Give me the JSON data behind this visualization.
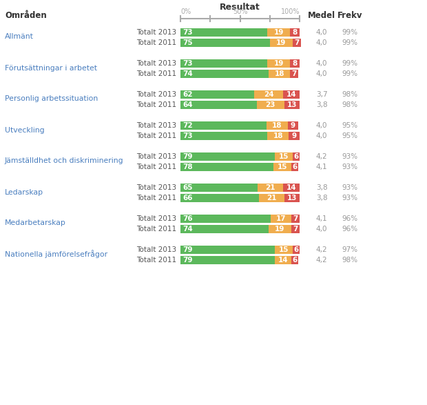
{
  "title": "Resultat",
  "col_header_omraden": "Områden",
  "col_header_medel": "Medel",
  "col_header_frekv": "Frekv",
  "categories": [
    {
      "name": "Allmänt",
      "rows": [
        {
          "label": "Totalt 2013",
          "green": 73,
          "yellow": 19,
          "red": 8,
          "medel": "4,0",
          "frekv": "99%"
        },
        {
          "label": "Totalt 2011",
          "green": 75,
          "yellow": 19,
          "red": 7,
          "medel": "4,0",
          "frekv": "99%"
        }
      ]
    },
    {
      "name": "Förutsättningar i arbetet",
      "rows": [
        {
          "label": "Totalt 2013",
          "green": 73,
          "yellow": 19,
          "red": 8,
          "medel": "4,0",
          "frekv": "99%"
        },
        {
          "label": "Totalt 2011",
          "green": 74,
          "yellow": 18,
          "red": 7,
          "medel": "4,0",
          "frekv": "99%"
        }
      ]
    },
    {
      "name": "Personlig arbetssituation",
      "rows": [
        {
          "label": "Totalt 2013",
          "green": 62,
          "yellow": 24,
          "red": 14,
          "medel": "3,7",
          "frekv": "98%"
        },
        {
          "label": "Totalt 2011",
          "green": 64,
          "yellow": 23,
          "red": 13,
          "medel": "3,8",
          "frekv": "98%"
        }
      ]
    },
    {
      "name": "Utveckling",
      "rows": [
        {
          "label": "Totalt 2013",
          "green": 72,
          "yellow": 18,
          "red": 9,
          "medel": "4,0",
          "frekv": "95%"
        },
        {
          "label": "Totalt 2011",
          "green": 73,
          "yellow": 18,
          "red": 9,
          "medel": "4,0",
          "frekv": "95%"
        }
      ]
    },
    {
      "name": "Jämställdhet och diskriminering",
      "rows": [
        {
          "label": "Totalt 2013",
          "green": 79,
          "yellow": 15,
          "red": 6,
          "medel": "4,2",
          "frekv": "93%"
        },
        {
          "label": "Totalt 2011",
          "green": 78,
          "yellow": 15,
          "red": 6,
          "medel": "4,1",
          "frekv": "93%"
        }
      ]
    },
    {
      "name": "Ledarskap",
      "rows": [
        {
          "label": "Totalt 2013",
          "green": 65,
          "yellow": 21,
          "red": 14,
          "medel": "3,8",
          "frekv": "93%"
        },
        {
          "label": "Totalt 2011",
          "green": 66,
          "yellow": 21,
          "red": 13,
          "medel": "3,8",
          "frekv": "93%"
        }
      ]
    },
    {
      "name": "Medarbetarskap",
      "rows": [
        {
          "label": "Totalt 2013",
          "green": 76,
          "yellow": 17,
          "red": 7,
          "medel": "4,1",
          "frekv": "96%"
        },
        {
          "label": "Totalt 2011",
          "green": 74,
          "yellow": 19,
          "red": 7,
          "medel": "4,0",
          "frekv": "96%"
        }
      ]
    },
    {
      "name": "Nationella jämförelsefrågor",
      "rows": [
        {
          "label": "Totalt 2013",
          "green": 79,
          "yellow": 15,
          "red": 6,
          "medel": "4,2",
          "frekv": "97%"
        },
        {
          "label": "Totalt 2011",
          "green": 79,
          "yellow": 14,
          "red": 6,
          "medel": "4,2",
          "frekv": "98%"
        }
      ]
    }
  ],
  "color_green": "#5cb85c",
  "color_yellow": "#f0ad4e",
  "color_red": "#d9534f",
  "color_bg": "#ffffff",
  "color_header_text": "#333333",
  "color_category_text": "#4a7ebf",
  "color_row_label": "#555555",
  "color_scale": "#aaaaaa",
  "color_medel_frekv": "#999999",
  "fig_width": 6.2,
  "fig_height": 5.87
}
